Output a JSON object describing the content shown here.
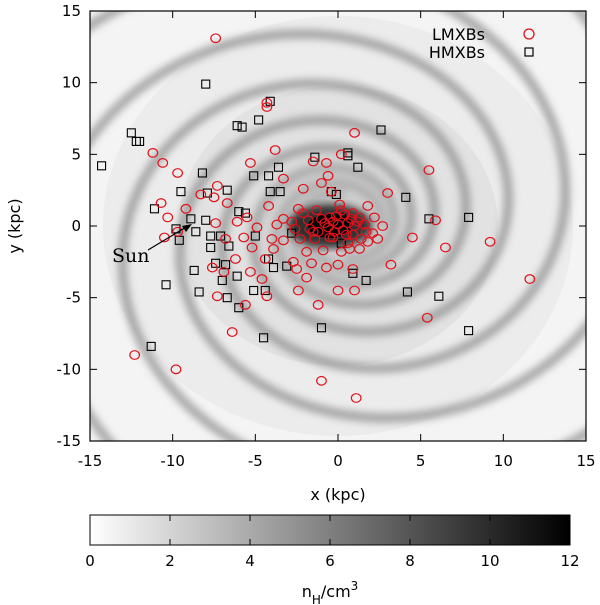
{
  "chart_data": {
    "type": "scatter",
    "title": "",
    "xlabel": "x (kpc)",
    "ylabel": "y (kpc)",
    "xlim": [
      -15,
      15
    ],
    "ylim": [
      -15,
      15
    ],
    "xticks": [
      -15,
      -10,
      -5,
      0,
      5,
      10,
      15
    ],
    "yticks": [
      -15,
      -10,
      -5,
      0,
      5,
      10,
      15
    ],
    "background": "spiral-arm gas density map n_H (grayscale)",
    "legend_position": "top-right",
    "annotation": {
      "text": "Sun",
      "x": -8.5,
      "y": 0
    },
    "colorbar": {
      "label": "n_H/cm^3",
      "label_main": "n",
      "label_sub": "H",
      "label_rest": "/cm",
      "label_sup": "3",
      "range": [
        0,
        12
      ],
      "ticks": [
        "0",
        "2",
        "4",
        "6",
        "8",
        "10",
        "12"
      ]
    },
    "colors": {
      "lmxb": "#e3101a",
      "hmxb": "#000000"
    },
    "series": [
      {
        "name": "LMXBs",
        "marker": "circle",
        "points": [
          [
            -7.4,
            13.1
          ],
          [
            -4.3,
            8.3
          ],
          [
            -4.3,
            8.6
          ],
          [
            1.0,
            6.5
          ],
          [
            -11.2,
            5.1
          ],
          [
            -3.8,
            5.3
          ],
          [
            0.2,
            5.0
          ],
          [
            -10.6,
            4.4
          ],
          [
            -5.3,
            4.4
          ],
          [
            -1.5,
            4.5
          ],
          [
            -0.7,
            4.4
          ],
          [
            5.5,
            3.9
          ],
          [
            -9.7,
            3.7
          ],
          [
            -3.3,
            3.3
          ],
          [
            -0.6,
            3.5
          ],
          [
            -1.0,
            3.0
          ],
          [
            -7.3,
            2.8
          ],
          [
            -2.1,
            2.6
          ],
          [
            -8.3,
            2.2
          ],
          [
            -7.5,
            2.0
          ],
          [
            -0.4,
            2.4
          ],
          [
            3.0,
            2.3
          ],
          [
            -10.7,
            1.6
          ],
          [
            -6.7,
            1.6
          ],
          [
            -9.2,
            1.2
          ],
          [
            -4.2,
            1.4
          ],
          [
            -2.4,
            1.2
          ],
          [
            -1.3,
            1.1
          ],
          [
            0.1,
            1.5
          ],
          [
            1.8,
            1.4
          ],
          [
            -10.3,
            0.6
          ],
          [
            -6.1,
            0.3
          ],
          [
            -5.5,
            0.6
          ],
          [
            -3.3,
            0.5
          ],
          [
            -2.8,
            0.3
          ],
          [
            -1.8,
            0.4
          ],
          [
            -1.0,
            0.5
          ],
          [
            -0.5,
            0.6
          ],
          [
            -0.1,
            0.7
          ],
          [
            0.4,
            0.8
          ],
          [
            0.8,
            0.5
          ],
          [
            1.2,
            0.3
          ],
          [
            1.6,
            0.1
          ],
          [
            5.9,
            0.4
          ],
          [
            -7.4,
            0.2
          ],
          [
            -4.9,
            -0.1
          ],
          [
            -3.7,
            0.1
          ],
          [
            -2.6,
            -0.2
          ],
          [
            -1.7,
            -0.2
          ],
          [
            -1.2,
            -0.4
          ],
          [
            -0.6,
            -0.1
          ],
          [
            0.0,
            0.1
          ],
          [
            0.3,
            -0.3
          ],
          [
            0.9,
            -0.6
          ],
          [
            1.4,
            -0.9
          ],
          [
            2.1,
            -0.5
          ],
          [
            4.5,
            -0.8
          ],
          [
            -10.5,
            -0.8
          ],
          [
            -9.7,
            -0.4
          ],
          [
            -6.8,
            -0.9
          ],
          [
            -5.7,
            -0.8
          ],
          [
            -4.0,
            -0.9
          ],
          [
            -3.3,
            -1.0
          ],
          [
            -2.3,
            -0.9
          ],
          [
            -1.4,
            -0.9
          ],
          [
            -0.3,
            -0.8
          ],
          [
            0.6,
            -1.2
          ],
          [
            1.8,
            -1.1
          ],
          [
            2.4,
            -0.9
          ],
          [
            6.5,
            -1.5
          ],
          [
            9.2,
            -1.1
          ],
          [
            -5.2,
            -1.5
          ],
          [
            -3.9,
            -1.6
          ],
          [
            -1.9,
            -1.8
          ],
          [
            -0.9,
            -1.7
          ],
          [
            0.2,
            -1.8
          ],
          [
            1.3,
            -1.6
          ],
          [
            -6.2,
            -2.3
          ],
          [
            -4.4,
            -2.3
          ],
          [
            -2.7,
            -2.5
          ],
          [
            -1.6,
            -2.6
          ],
          [
            0.0,
            -2.7
          ],
          [
            3.2,
            -2.7
          ],
          [
            -7.6,
            -2.9
          ],
          [
            -6.9,
            -3.2
          ],
          [
            -5.3,
            -3.2
          ],
          [
            -2.5,
            -3.0
          ],
          [
            -0.7,
            -2.9
          ],
          [
            0.9,
            -3.0
          ],
          [
            -4.6,
            -3.7
          ],
          [
            -1.9,
            -3.6
          ],
          [
            -7.3,
            -4.9
          ],
          [
            -4.3,
            -4.9
          ],
          [
            -2.4,
            -4.5
          ],
          [
            0.0,
            -4.5
          ],
          [
            1.0,
            -4.5
          ],
          [
            -5.6,
            -5.5
          ],
          [
            -1.2,
            -5.5
          ],
          [
            5.4,
            -6.4
          ],
          [
            -6.4,
            -7.4
          ],
          [
            11.6,
            -3.7
          ],
          [
            -12.3,
            -9.0
          ],
          [
            -9.8,
            -10.0
          ],
          [
            -1.0,
            -10.8
          ],
          [
            1.1,
            -12.0
          ],
          [
            -0.3,
            0.3
          ],
          [
            0.6,
            0.2
          ],
          [
            1.0,
            0.0
          ],
          [
            -0.2,
            -0.4
          ],
          [
            0.5,
            -0.6
          ],
          [
            0.9,
            0.9
          ],
          [
            -0.8,
            0.2
          ],
          [
            1.3,
            0.6
          ],
          [
            0.2,
            1.1
          ],
          [
            -0.5,
            -0.8
          ],
          [
            1.7,
            -0.4
          ],
          [
            2.7,
            0.0
          ],
          [
            2.2,
            0.6
          ],
          [
            -1.5,
            -0.4
          ],
          [
            0.7,
            -1.6
          ],
          [
            -2.1,
            0.9
          ]
        ]
      },
      {
        "name": "HMXBs",
        "marker": "square",
        "points": [
          [
            -8.0,
            9.9
          ],
          [
            -4.1,
            8.7
          ],
          [
            -12.5,
            6.5
          ],
          [
            -12.0,
            5.9
          ],
          [
            -6.1,
            7.0
          ],
          [
            -5.8,
            6.9
          ],
          [
            -4.8,
            7.4
          ],
          [
            2.6,
            6.7
          ],
          [
            -14.3,
            4.2
          ],
          [
            -1.4,
            4.8
          ],
          [
            0.6,
            5.1
          ],
          [
            0.6,
            4.9
          ],
          [
            -8.2,
            3.7
          ],
          [
            -5.1,
            3.5
          ],
          [
            -4.2,
            3.5
          ],
          [
            -3.6,
            4.1
          ],
          [
            1.2,
            4.1
          ],
          [
            -9.5,
            2.4
          ],
          [
            -7.9,
            2.3
          ],
          [
            -6.7,
            2.5
          ],
          [
            -4.1,
            2.4
          ],
          [
            -3.5,
            2.4
          ],
          [
            -0.4,
            2.4
          ],
          [
            -0.1,
            2.2
          ],
          [
            4.1,
            2.0
          ],
          [
            -11.1,
            1.2
          ],
          [
            -6.0,
            1.0
          ],
          [
            -5.6,
            0.9
          ],
          [
            -8.9,
            0.5
          ],
          [
            -8.0,
            0.4
          ],
          [
            -9.8,
            -0.2
          ],
          [
            -8.6,
            -0.4
          ],
          [
            5.5,
            0.5
          ],
          [
            7.9,
            0.6
          ],
          [
            -9.6,
            -1.0
          ],
          [
            -7.7,
            -0.7
          ],
          [
            -7.1,
            -0.7
          ],
          [
            -5.0,
            -0.7
          ],
          [
            -2.8,
            -0.5
          ],
          [
            0.2,
            -1.2
          ],
          [
            -7.7,
            -1.5
          ],
          [
            -6.6,
            -1.4
          ],
          [
            -4.2,
            -2.3
          ],
          [
            -3.9,
            -2.9
          ],
          [
            -7.4,
            -2.6
          ],
          [
            -6.8,
            -2.7
          ],
          [
            -6.1,
            -3.5
          ],
          [
            -3.1,
            -2.8
          ],
          [
            0.9,
            -3.3
          ],
          [
            -10.4,
            -4.1
          ],
          [
            -8.7,
            -3.1
          ],
          [
            -7.0,
            -3.8
          ],
          [
            -8.4,
            -4.6
          ],
          [
            -5.1,
            -4.5
          ],
          [
            -4.4,
            -4.5
          ],
          [
            1.7,
            -3.8
          ],
          [
            4.2,
            -4.6
          ],
          [
            6.1,
            -4.9
          ],
          [
            -6.7,
            -5.0
          ],
          [
            -6.0,
            -5.7
          ],
          [
            -1.0,
            -7.1
          ],
          [
            -4.5,
            -7.8
          ],
          [
            7.9,
            -7.3
          ],
          [
            -11.3,
            -8.4
          ],
          [
            -12.2,
            5.9
          ],
          [
            0.1,
            -0.3
          ],
          [
            0.5,
            0.4
          ],
          [
            -0.4,
            0.0
          ],
          [
            0.2,
            0.6
          ]
        ]
      }
    ]
  }
}
